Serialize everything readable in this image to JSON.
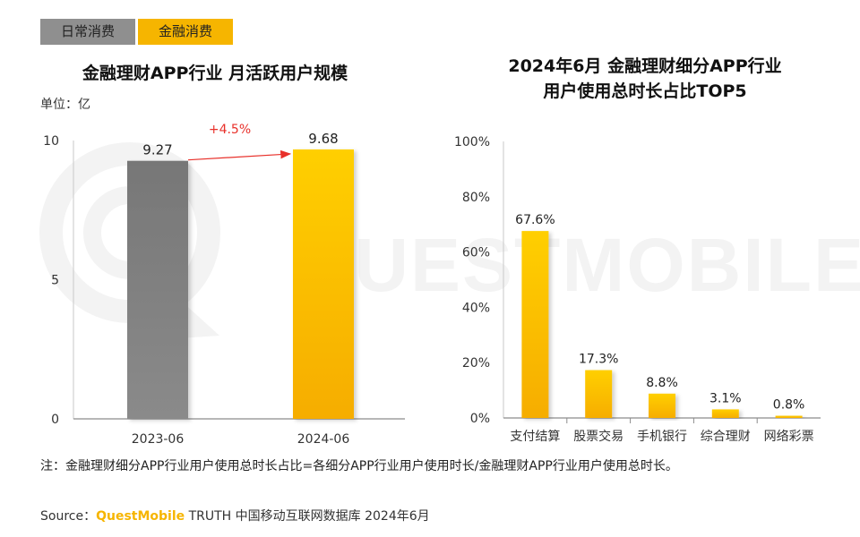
{
  "tabs": [
    {
      "label": "日常消费"
    },
    {
      "label": "金融消费"
    }
  ],
  "watermark": "QUESTMOBILE",
  "chart_data": [
    {
      "type": "bar",
      "title": "金融理财APP行业 月活跃用户规模",
      "unit_label": "单位：亿",
      "categories": [
        "2023-06",
        "2024-06"
      ],
      "values": [
        9.27,
        9.68
      ],
      "value_labels": [
        "9.27",
        "9.68"
      ],
      "ylim": [
        0,
        10
      ],
      "yticks": [
        "0",
        "5",
        "10"
      ],
      "bar_colors": [
        "#7e7e7e",
        "#f8bc00"
      ],
      "growth_label": "+4.5%",
      "growth_color": "#e8302a"
    },
    {
      "type": "bar",
      "title_lines": [
        "2024年6月 金融理财细分APP行业",
        "用户使用总时长占比TOP5"
      ],
      "categories": [
        "支付结算",
        "股票交易",
        "手机银行",
        "综合理财",
        "网络彩票"
      ],
      "values": [
        67.6,
        17.3,
        8.8,
        3.1,
        0.8
      ],
      "value_labels": [
        "67.6%",
        "17.3%",
        "8.8%",
        "3.1%",
        "0.8%"
      ],
      "ylim": [
        0,
        100
      ],
      "yticks": [
        "0%",
        "20%",
        "40%",
        "60%",
        "80%",
        "100%"
      ],
      "bar_color": "#f8bc00"
    }
  ],
  "note": "注：金融理财细分APP行业用户使用总时长占比=各细分APP行业用户使用时长/金融理财APP行业用户使用总时长。",
  "source": {
    "prefix": "Source：",
    "brand": "QuestMobile",
    "rest": " TRUTH 中国移动互联网数据库 2024年6月"
  }
}
